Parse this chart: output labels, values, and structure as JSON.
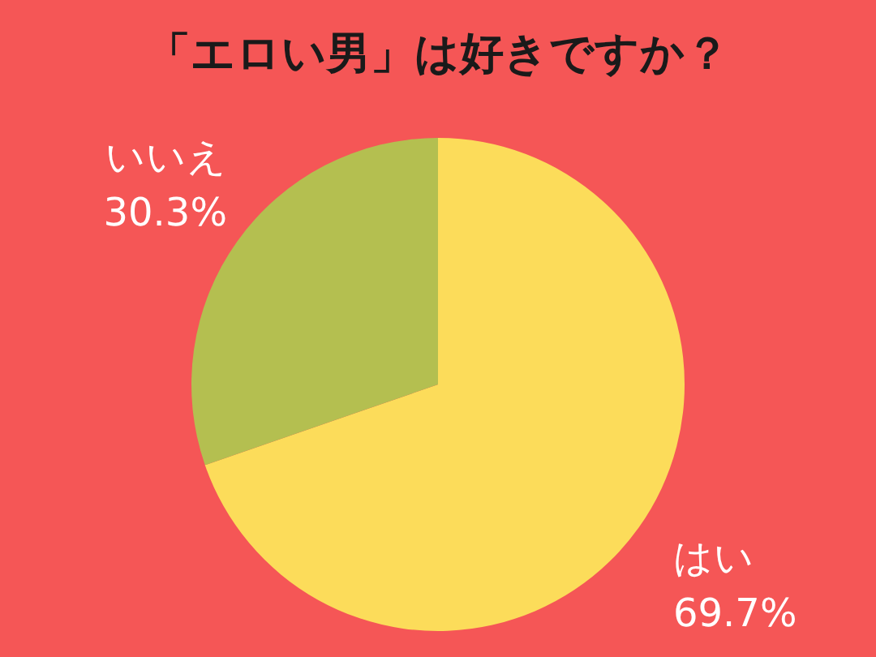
{
  "chart_data": {
    "type": "pie",
    "title": "「エロい男」は好きですか？",
    "categories": [
      "はい",
      "いいえ"
    ],
    "values": [
      69.7,
      30.3
    ],
    "value_labels": [
      "69.7%",
      "30.3%"
    ],
    "colors": [
      "#fcdc5a",
      "#b4bf50"
    ]
  }
}
